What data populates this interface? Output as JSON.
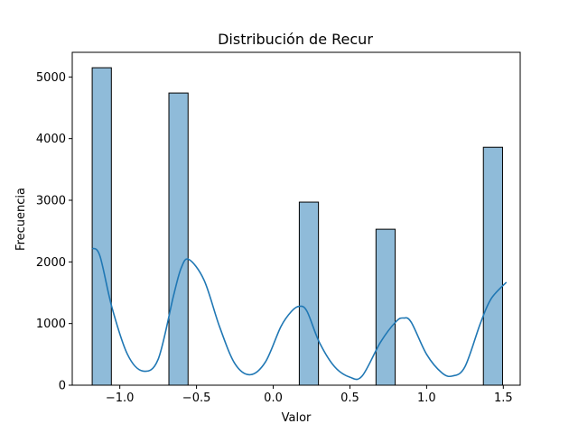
{
  "chart_data": {
    "type": "bar",
    "title": "Distribución de Recur",
    "xlabel": "Valor",
    "ylabel": "Frecuencia",
    "xlim": [
      -1.31,
      1.61
    ],
    "ylim": [
      0,
      5400
    ],
    "x_ticks": [
      -1.0,
      -0.5,
      0.0,
      0.5,
      1.0,
      1.5
    ],
    "x_tick_labels": [
      "−1.0",
      "−0.5",
      "0.0",
      "0.5",
      "1.0",
      "1.5"
    ],
    "y_ticks": [
      0,
      1000,
      2000,
      3000,
      4000,
      5000
    ],
    "y_tick_labels": [
      "0",
      "1000",
      "2000",
      "3000",
      "4000",
      "5000"
    ],
    "bars": [
      {
        "x0": -1.18,
        "x1": -1.055,
        "value": 5150
      },
      {
        "x0": -0.68,
        "x1": -0.555,
        "value": 4740
      },
      {
        "x0": 0.17,
        "x1": 0.295,
        "value": 2970
      },
      {
        "x0": 0.67,
        "x1": 0.795,
        "value": 2530
      },
      {
        "x0": 1.37,
        "x1": 1.495,
        "value": 3860
      }
    ],
    "kde": {
      "x": [
        -1.18,
        -1.13,
        -1.05,
        -0.95,
        -0.85,
        -0.75,
        -0.65,
        -0.6,
        -0.55,
        -0.45,
        -0.35,
        -0.25,
        -0.15,
        -0.05,
        0.05,
        0.12,
        0.17,
        0.22,
        0.3,
        0.4,
        0.5,
        0.58,
        0.7,
        0.8,
        0.85,
        0.9,
        1.0,
        1.1,
        1.17,
        1.25,
        1.35,
        1.42,
        1.52
      ],
      "y": [
        2220,
        2100,
        1250,
        500,
        230,
        420,
        1450,
        1900,
        2040,
        1700,
        950,
        350,
        170,
        380,
        950,
        1200,
        1280,
        1200,
        700,
        300,
        130,
        150,
        700,
        1030,
        1090,
        1020,
        500,
        200,
        150,
        300,
        1000,
        1400,
        1670
      ]
    },
    "colors": {
      "bar_fill": "#8fbbd9",
      "bar_edge": "#000000",
      "kde_line": "#1f77b4"
    },
    "grid": false
  }
}
